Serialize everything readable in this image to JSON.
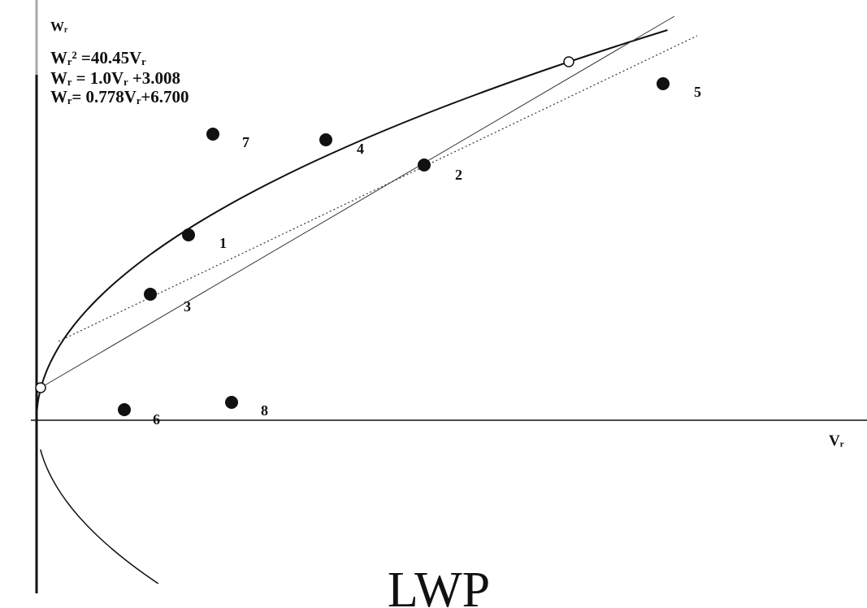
{
  "y_axis_label": "Wᵣ",
  "x_axis_label": "Vᵣ",
  "equations": [
    "Wᵣ² =40.45Vᵣ",
    "Wᵣ = 1.0Vᵣ +3.008",
    "Wᵣ= 0.778Vᵣ+6.700"
  ],
  "points": [
    "1",
    "2",
    "3",
    "4",
    "5",
    "6",
    "7",
    "8"
  ],
  "title": "LWP"
}
